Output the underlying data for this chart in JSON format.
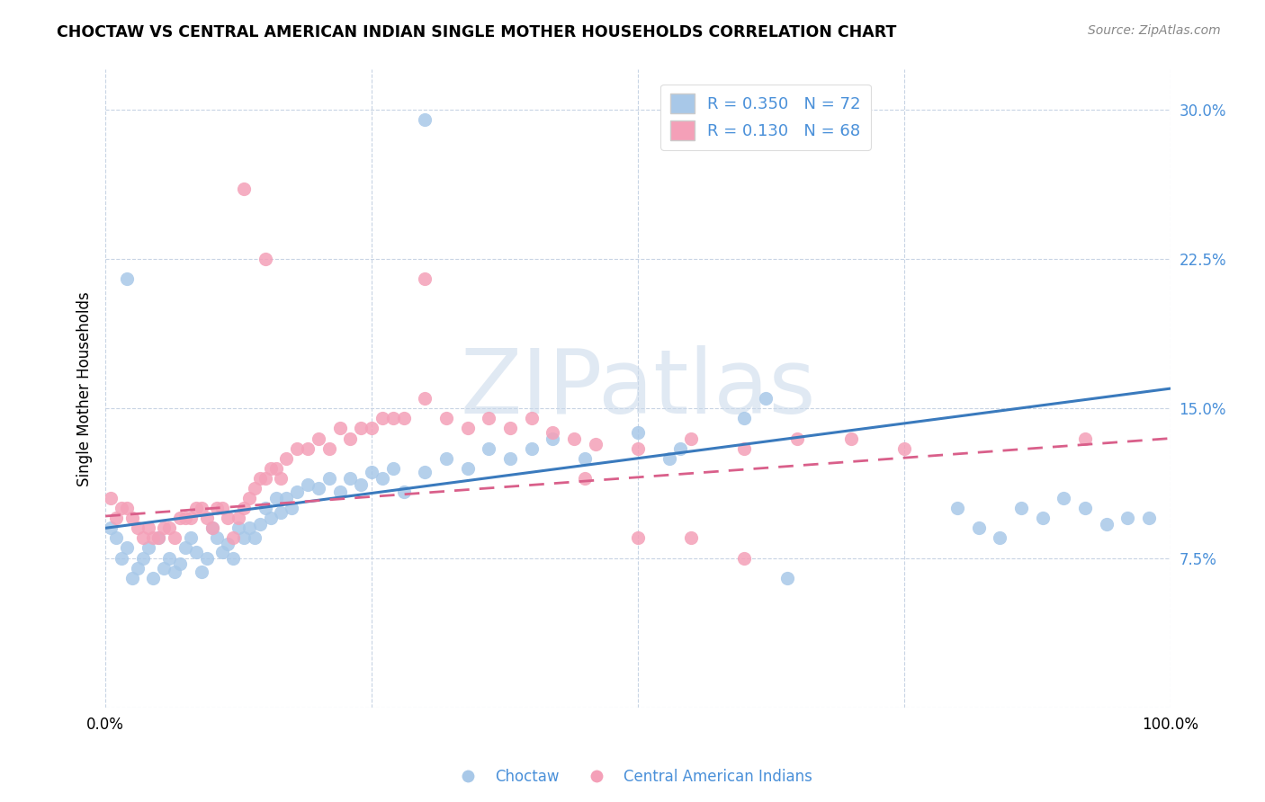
{
  "title": "CHOCTAW VS CENTRAL AMERICAN INDIAN SINGLE MOTHER HOUSEHOLDS CORRELATION CHART",
  "source": "Source: ZipAtlas.com",
  "ylabel": "Single Mother Households",
  "xlim": [
    0.0,
    1.0
  ],
  "ylim": [
    0.0,
    0.32
  ],
  "yticks": [
    0.0,
    0.075,
    0.15,
    0.225,
    0.3
  ],
  "ytick_labels": [
    "",
    "7.5%",
    "15.0%",
    "22.5%",
    "30.0%"
  ],
  "xticks": [
    0.0,
    0.25,
    0.5,
    0.75,
    1.0
  ],
  "xtick_labels": [
    "0.0%",
    "",
    "",
    "",
    "100.0%"
  ],
  "blue_R": 0.35,
  "blue_N": 72,
  "pink_R": 0.13,
  "pink_N": 68,
  "blue_color": "#a8c8e8",
  "pink_color": "#f4a0b8",
  "blue_line_color": "#3a7abd",
  "pink_line_color": "#d95f8a",
  "tick_color": "#4a90d9",
  "legend_text_color": "#4a90d9",
  "watermark_text": "ZIPatlas",
  "background_color": "#ffffff",
  "grid_color": "#c8d4e4",
  "blue_label": "Choctaw",
  "pink_label": "Central American Indians",
  "blue_scatter_x": [
    0.3,
    0.005,
    0.01,
    0.015,
    0.02,
    0.025,
    0.03,
    0.035,
    0.04,
    0.045,
    0.05,
    0.055,
    0.06,
    0.065,
    0.07,
    0.075,
    0.08,
    0.085,
    0.09,
    0.095,
    0.1,
    0.105,
    0.11,
    0.115,
    0.12,
    0.125,
    0.13,
    0.135,
    0.14,
    0.145,
    0.15,
    0.155,
    0.16,
    0.165,
    0.17,
    0.175,
    0.18,
    0.19,
    0.2,
    0.21,
    0.22,
    0.23,
    0.24,
    0.25,
    0.26,
    0.27,
    0.28,
    0.3,
    0.32,
    0.34,
    0.36,
    0.38,
    0.4,
    0.42,
    0.45,
    0.5,
    0.53,
    0.54,
    0.6,
    0.62,
    0.64,
    0.8,
    0.82,
    0.84,
    0.86,
    0.88,
    0.9,
    0.92,
    0.94,
    0.96,
    0.98,
    0.02
  ],
  "blue_scatter_y": [
    0.295,
    0.09,
    0.085,
    0.075,
    0.08,
    0.065,
    0.07,
    0.075,
    0.08,
    0.065,
    0.085,
    0.07,
    0.075,
    0.068,
    0.072,
    0.08,
    0.085,
    0.078,
    0.068,
    0.075,
    0.09,
    0.085,
    0.078,
    0.082,
    0.075,
    0.09,
    0.085,
    0.09,
    0.085,
    0.092,
    0.1,
    0.095,
    0.105,
    0.098,
    0.105,
    0.1,
    0.108,
    0.112,
    0.11,
    0.115,
    0.108,
    0.115,
    0.112,
    0.118,
    0.115,
    0.12,
    0.108,
    0.118,
    0.125,
    0.12,
    0.13,
    0.125,
    0.13,
    0.135,
    0.125,
    0.138,
    0.125,
    0.13,
    0.145,
    0.155,
    0.065,
    0.1,
    0.09,
    0.085,
    0.1,
    0.095,
    0.105,
    0.1,
    0.092,
    0.095,
    0.095,
    0.215
  ],
  "pink_scatter_x": [
    0.005,
    0.01,
    0.015,
    0.02,
    0.025,
    0.03,
    0.035,
    0.04,
    0.045,
    0.05,
    0.055,
    0.06,
    0.065,
    0.07,
    0.075,
    0.08,
    0.085,
    0.09,
    0.095,
    0.1,
    0.105,
    0.11,
    0.115,
    0.12,
    0.125,
    0.13,
    0.135,
    0.14,
    0.145,
    0.15,
    0.155,
    0.16,
    0.165,
    0.17,
    0.18,
    0.19,
    0.2,
    0.21,
    0.22,
    0.23,
    0.24,
    0.25,
    0.26,
    0.27,
    0.28,
    0.3,
    0.32,
    0.34,
    0.36,
    0.38,
    0.4,
    0.42,
    0.44,
    0.46,
    0.5,
    0.55,
    0.6,
    0.65,
    0.7,
    0.75,
    0.13,
    0.15,
    0.3,
    0.45,
    0.5,
    0.55,
    0.6,
    0.92
  ],
  "pink_scatter_y": [
    0.105,
    0.095,
    0.1,
    0.1,
    0.095,
    0.09,
    0.085,
    0.09,
    0.085,
    0.085,
    0.09,
    0.09,
    0.085,
    0.095,
    0.095,
    0.095,
    0.1,
    0.1,
    0.095,
    0.09,
    0.1,
    0.1,
    0.095,
    0.085,
    0.095,
    0.1,
    0.105,
    0.11,
    0.115,
    0.115,
    0.12,
    0.12,
    0.115,
    0.125,
    0.13,
    0.13,
    0.135,
    0.13,
    0.14,
    0.135,
    0.14,
    0.14,
    0.145,
    0.145,
    0.145,
    0.155,
    0.145,
    0.14,
    0.145,
    0.14,
    0.145,
    0.138,
    0.135,
    0.132,
    0.13,
    0.135,
    0.13,
    0.135,
    0.135,
    0.13,
    0.26,
    0.225,
    0.215,
    0.115,
    0.085,
    0.085,
    0.075,
    0.135
  ],
  "blue_line_x0": 0.0,
  "blue_line_y0": 0.09,
  "blue_line_x1": 1.0,
  "blue_line_y1": 0.16,
  "pink_line_x0": 0.0,
  "pink_line_y0": 0.096,
  "pink_line_x1": 1.0,
  "pink_line_y1": 0.135
}
